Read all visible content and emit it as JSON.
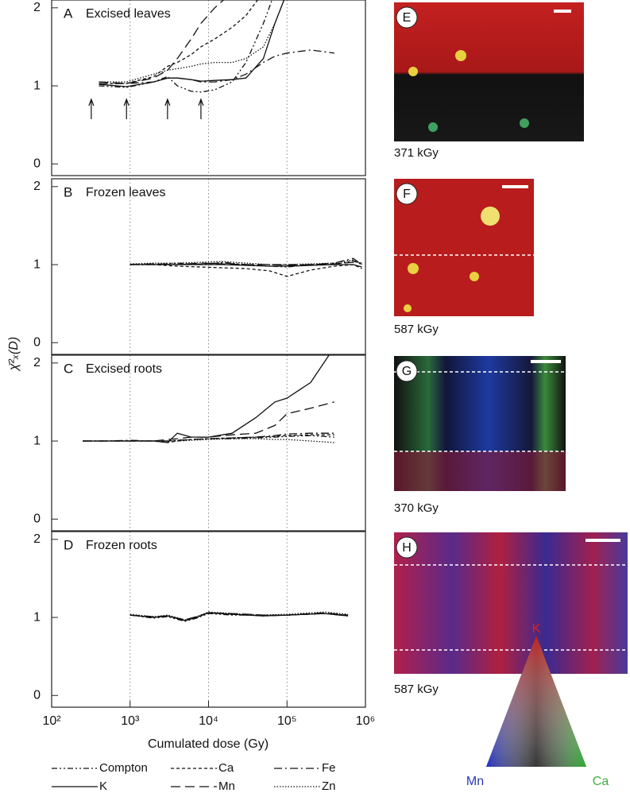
{
  "chart_data": [
    {
      "type": "line",
      "label": "A",
      "title": "Excised leaves",
      "log_x": true,
      "grid": true,
      "xlim": [
        100,
        1000000
      ],
      "ylim": [
        -0.15,
        2.1
      ],
      "yticks": [
        0,
        1,
        2
      ],
      "xticks": [
        {
          "value": 100,
          "label": "10²"
        },
        {
          "value": 1000,
          "label": "10³"
        },
        {
          "value": 10000,
          "label": "10⁴"
        },
        {
          "value": 100000,
          "label": "10⁵"
        },
        {
          "value": 1000000,
          "label": "10⁶"
        }
      ],
      "arrows": [
        320,
        900,
        3000,
        8000
      ],
      "x": [
        400,
        900,
        2000,
        3000,
        4000,
        6000,
        8000,
        12000,
        20000,
        30000,
        50000,
        70000,
        100000,
        200000,
        400000
      ],
      "series": [
        {
          "name": "Compton",
          "color": "#111",
          "dash": "7 3 2 3 2 3",
          "values": [
            1.0,
            0.98,
            1.05,
            1.12,
            1.0,
            0.93,
            0.92,
            0.95,
            1.05,
            1.3,
            1.8,
            2.2,
            null,
            null,
            null
          ]
        },
        {
          "name": "Ca",
          "color": "#111",
          "dash": "4 3",
          "values": [
            1.03,
            1.03,
            1.12,
            1.25,
            1.3,
            1.4,
            1.5,
            1.6,
            1.75,
            1.9,
            2.2,
            null,
            null,
            null,
            null
          ]
        },
        {
          "name": "Fe",
          "color": "#111",
          "dash": "10 4 2 4",
          "values": [
            1.03,
            1.03,
            1.05,
            1.1,
            1.1,
            1.08,
            1.05,
            1.05,
            1.08,
            1.15,
            1.3,
            1.38,
            1.42,
            1.46,
            1.42
          ]
        },
        {
          "name": "K",
          "color": "#111",
          "dash": "none",
          "values": [
            1.02,
            0.99,
            1.05,
            1.1,
            1.1,
            1.08,
            1.06,
            1.07,
            1.08,
            1.1,
            1.35,
            1.8,
            2.2,
            null,
            null
          ]
        },
        {
          "name": "Mn",
          "color": "#111",
          "dash": "12 6",
          "values": [
            1.05,
            1.03,
            1.1,
            1.2,
            1.35,
            1.6,
            1.8,
            2.0,
            2.2,
            null,
            null,
            null,
            null,
            null,
            null
          ]
        },
        {
          "name": "Zn",
          "color": "#111",
          "dash": "1.5 2",
          "values": [
            1.05,
            1.05,
            1.15,
            1.2,
            1.22,
            1.25,
            1.28,
            1.3,
            1.3,
            1.35,
            1.5,
            1.8,
            2.2,
            null,
            null
          ]
        }
      ]
    },
    {
      "type": "line",
      "label": "B",
      "title": "Frozen leaves",
      "log_x": true,
      "grid": true,
      "xlim": [
        100,
        1000000
      ],
      "ylim": [
        -0.15,
        2.1
      ],
      "yticks": [
        0,
        1,
        2
      ],
      "x": [
        1000,
        2000,
        4000,
        8000,
        15000,
        30000,
        60000,
        100000,
        200000,
        400000,
        700000,
        900000
      ],
      "series": [
        {
          "name": "Compton",
          "color": "#111",
          "dash": "7 3 2 3 2 3",
          "values": [
            1.0,
            1.0,
            1.02,
            1.0,
            1.03,
            1.0,
            0.98,
            0.97,
            1.0,
            1.0,
            1.05,
            1.0
          ]
        },
        {
          "name": "Ca",
          "color": "#111",
          "dash": "4 3",
          "values": [
            1.0,
            1.0,
            0.98,
            0.97,
            0.96,
            0.95,
            0.92,
            0.85,
            0.93,
            0.98,
            1.0,
            0.95
          ]
        },
        {
          "name": "Fe",
          "color": "#111",
          "dash": "10 4 2 4",
          "values": [
            1.0,
            1.01,
            1.0,
            1.01,
            1.02,
            1.0,
            1.0,
            1.0,
            1.0,
            1.02,
            1.08,
            1.0
          ]
        },
        {
          "name": "K",
          "color": "#111",
          "dash": "none",
          "values": [
            1.0,
            1.0,
            1.0,
            1.0,
            1.0,
            0.99,
            0.98,
            0.98,
            0.99,
            1.0,
            1.0,
            0.97
          ]
        },
        {
          "name": "Mn",
          "color": "#111",
          "dash": "12 6",
          "values": [
            1.0,
            1.01,
            1.0,
            1.02,
            1.01,
            1.0,
            1.0,
            0.99,
            1.0,
            1.01,
            1.03,
            1.02
          ]
        },
        {
          "name": "Zn",
          "color": "#111",
          "dash": "1.5 2",
          "values": [
            1.01,
            1.02,
            1.02,
            1.03,
            1.04,
            1.02,
            1.0,
            1.0,
            1.01,
            1.02,
            1.06,
            1.0
          ]
        }
      ]
    },
    {
      "type": "line",
      "label": "C",
      "title": "Excised roots",
      "log_x": true,
      "grid": true,
      "xlim": [
        100,
        1000000
      ],
      "ylim": [
        -0.15,
        2.1
      ],
      "yticks": [
        0,
        1,
        2
      ],
      "x": [
        250,
        500,
        1000,
        2000,
        3000,
        4000,
        6000,
        10000,
        20000,
        40000,
        70000,
        100000,
        200000,
        400000
      ],
      "series": [
        {
          "name": "Compton",
          "color": "#111",
          "dash": "7 3 2 3 2 3",
          "values": [
            1.0,
            1.0,
            1.0,
            1.0,
            1.0,
            1.01,
            1.02,
            1.03,
            1.03,
            1.04,
            1.05,
            1.06,
            1.07,
            1.05
          ]
        },
        {
          "name": "Ca",
          "color": "#111",
          "dash": "4 3",
          "values": [
            1.0,
            1.0,
            1.0,
            1.0,
            0.98,
            1.0,
            1.02,
            1.03,
            1.04,
            1.05,
            1.06,
            1.07,
            1.08,
            1.08
          ]
        },
        {
          "name": "Fe",
          "color": "#111",
          "dash": "10 4 2 4",
          "values": [
            1.0,
            1.0,
            1.01,
            1.0,
            1.0,
            1.01,
            1.02,
            1.03,
            1.04,
            1.05,
            1.07,
            1.09,
            1.1,
            1.1
          ]
        },
        {
          "name": "K",
          "color": "#111",
          "dash": "none",
          "values": [
            1.0,
            1.0,
            1.0,
            1.0,
            0.98,
            1.1,
            1.05,
            1.05,
            1.1,
            1.3,
            1.5,
            1.55,
            1.75,
            2.2
          ]
        },
        {
          "name": "Mn",
          "color": "#111",
          "dash": "12 6",
          "values": [
            1.0,
            1.0,
            1.0,
            1.0,
            1.02,
            1.03,
            1.05,
            1.05,
            1.08,
            1.1,
            1.2,
            1.35,
            1.42,
            1.5
          ]
        },
        {
          "name": "Zn",
          "color": "#111",
          "dash": "1.5 2",
          "values": [
            1.0,
            1.0,
            1.0,
            1.0,
            1.0,
            1.0,
            1.01,
            1.02,
            1.03,
            1.03,
            1.02,
            1.02,
            1.0,
            0.98
          ]
        }
      ]
    },
    {
      "type": "line",
      "label": "D",
      "title": "Frozen roots",
      "log_x": true,
      "grid": true,
      "xlim": [
        100,
        1000000
      ],
      "ylim": [
        -0.15,
        2.1
      ],
      "yticks": [
        0,
        1,
        2
      ],
      "x": [
        1000,
        2000,
        3000,
        5000,
        7000,
        10000,
        20000,
        50000,
        100000,
        300000,
        600000
      ],
      "series": [
        {
          "name": "Compton",
          "color": "#111",
          "dash": "7 3 2 3 2 3",
          "values": [
            1.03,
            0.99,
            1.01,
            0.95,
            0.99,
            1.05,
            1.03,
            1.03,
            1.03,
            1.05,
            1.02
          ]
        },
        {
          "name": "Ca",
          "color": "#111",
          "dash": "4 3",
          "values": [
            1.03,
            1.0,
            1.02,
            0.96,
            1.0,
            1.06,
            1.04,
            1.02,
            1.03,
            1.05,
            1.03
          ]
        },
        {
          "name": "Fe",
          "color": "#111",
          "dash": "10 4 2 4",
          "values": [
            1.03,
            1.0,
            1.02,
            0.96,
            1.0,
            1.06,
            1.04,
            1.02,
            1.03,
            1.05,
            1.02
          ]
        },
        {
          "name": "K",
          "color": "#111",
          "dash": "none",
          "values": [
            1.03,
            1.0,
            1.02,
            0.96,
            1.0,
            1.06,
            1.04,
            1.02,
            1.03,
            1.05,
            1.02
          ]
        },
        {
          "name": "Mn",
          "color": "#111",
          "dash": "12 6",
          "values": [
            1.03,
            1.01,
            1.02,
            0.97,
            1.01,
            1.06,
            1.05,
            1.03,
            1.03,
            1.06,
            1.03
          ]
        },
        {
          "name": "Zn",
          "color": "#111",
          "dash": "1.5 2",
          "values": [
            1.04,
            1.01,
            1.03,
            0.97,
            1.01,
            1.07,
            1.05,
            1.03,
            1.04,
            1.07,
            1.04
          ]
        }
      ]
    }
  ],
  "figure": {
    "xlabel": "Cumulated dose (Gy)",
    "ylabel": "χ̄²ₓ(D)"
  },
  "images": [
    {
      "label": "E",
      "caption": "371 kGy"
    },
    {
      "label": "F",
      "caption": "587 kGy"
    },
    {
      "label": "G",
      "caption": "370 kGy"
    },
    {
      "label": "H",
      "caption": "587 kGy"
    }
  ],
  "color_key": {
    "top": "K",
    "left": "Mn",
    "right": "Ca"
  }
}
